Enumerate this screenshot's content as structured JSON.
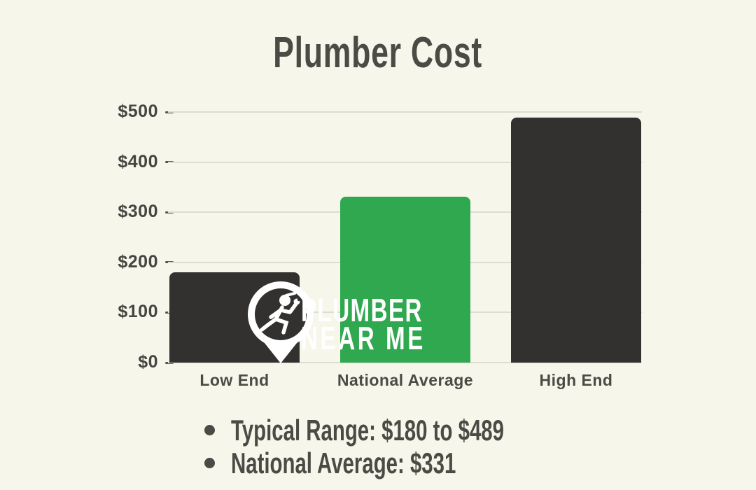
{
  "page": {
    "background": "#F7F6EB"
  },
  "chart_data": {
    "type": "bar",
    "title": "Plumber Cost",
    "categories": [
      "Low End",
      "National Average",
      "High End"
    ],
    "values": [
      180,
      331,
      489
    ],
    "bar_colors": [
      "#323130",
      "#2FA84F",
      "#323130"
    ],
    "xlabel": "",
    "ylabel": "",
    "ylim": [
      0,
      500
    ],
    "ytick_step": 100,
    "ytick_labels": [
      "$0",
      "$100",
      "$200",
      "$300",
      "$400",
      "$500"
    ],
    "grid": "horizontal-light",
    "legend": "none"
  },
  "watermark": {
    "icon": "running-plumber-pin-icon",
    "line1": "PLUMBER",
    "line2": "NEAR ME",
    "color": "#FFFFFF"
  },
  "notes": [
    "Typical Range: $180 to $489",
    "National Average: $331"
  ],
  "colors": {
    "background": "#F7F6EB",
    "text": "#4B4A44",
    "grid": "#DFDDD2",
    "tick_mark": "#56554F",
    "bar_dark": "#323130",
    "bar_green": "#2FA84F"
  }
}
